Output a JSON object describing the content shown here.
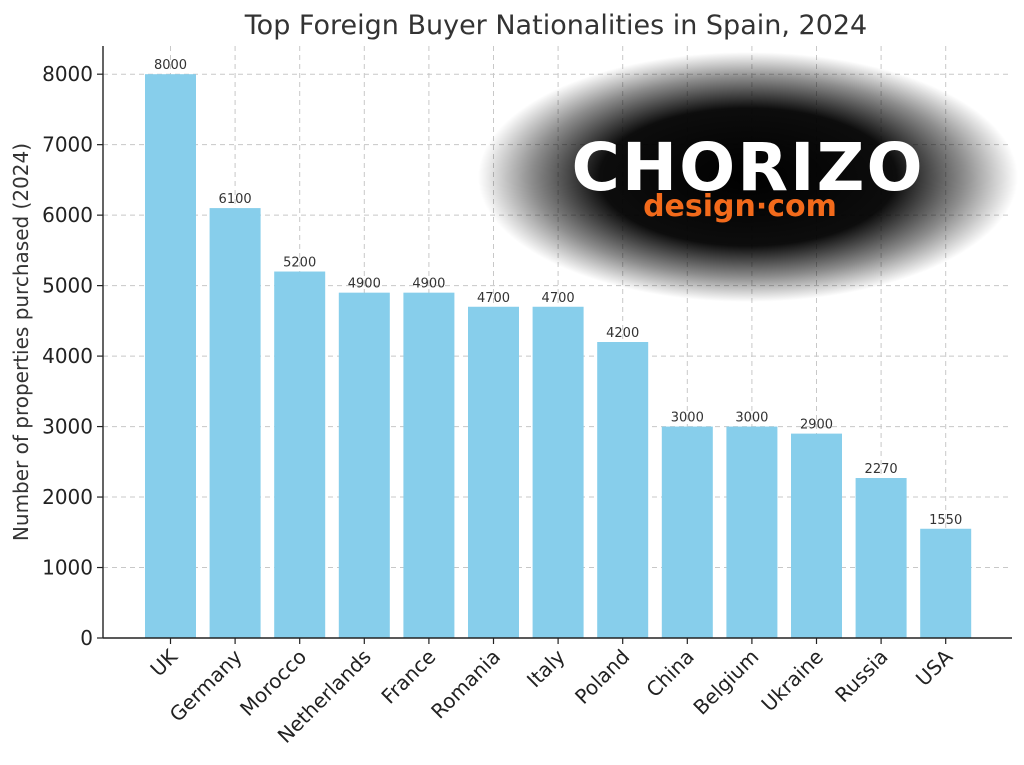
{
  "chart_data": {
    "type": "bar",
    "title": "Top Foreign Buyer Nationalities in Spain, 2024",
    "xlabel": "",
    "ylabel": "Number of properties purchased (2024)",
    "ylim": [
      0,
      8400
    ],
    "yticks": [
      0,
      1000,
      2000,
      3000,
      4000,
      5000,
      6000,
      7000,
      8000
    ],
    "grid": true,
    "bar_color": "#87ceeb",
    "categories": [
      "UK",
      "Germany",
      "Morocco",
      "Netherlands",
      "France",
      "Romania",
      "Italy",
      "Poland",
      "China",
      "Belgium",
      "Ukraine",
      "Russia",
      "USA"
    ],
    "values": [
      8000,
      6100,
      5200,
      4900,
      4900,
      4700,
      4700,
      4200,
      3000,
      3000,
      2900,
      2270,
      1550
    ]
  },
  "watermark": {
    "logo_text": "CHORIZO",
    "sub_text": "design·com",
    "accent_color": "#f26a1b"
  }
}
